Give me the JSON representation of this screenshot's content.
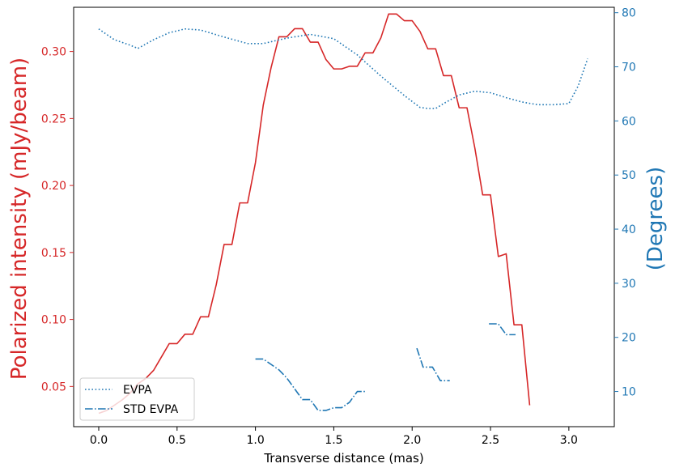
{
  "chart_data": {
    "type": "line",
    "xlabel": "Transverse distance (mas)",
    "ylabel_left": "Polarized intensity (mJy/beam)",
    "ylabel_right": "(Degrees)",
    "xlim": [
      -0.16,
      3.29
    ],
    "ylim_left": [
      0.02,
      0.333
    ],
    "ylim_right": [
      3.5,
      81
    ],
    "x_ticks": [
      0.0,
      0.5,
      1.0,
      1.5,
      2.0,
      2.5,
      3.0
    ],
    "x_tick_labels": [
      "0.0",
      "0.5",
      "1.0",
      "1.5",
      "2.0",
      "2.5",
      "3.0"
    ],
    "y_left_ticks": [
      0.05,
      0.1,
      0.15,
      0.2,
      0.25,
      0.3
    ],
    "y_left_tick_labels": [
      "0.05",
      "0.10",
      "0.15",
      "0.20",
      "0.25",
      "0.30"
    ],
    "y_right_ticks": [
      10,
      20,
      30,
      40,
      50,
      60,
      70,
      80
    ],
    "y_right_tick_labels": [
      "10",
      "20",
      "30",
      "40",
      "50",
      "60",
      "70",
      "80"
    ],
    "grid": false,
    "legend_position": "lower-left",
    "colors": {
      "pi": "#d62728",
      "evpa": "#1f77b4",
      "left_axis": "#d62728",
      "right_axis": "#1f77b4"
    },
    "series": [
      {
        "axis": "left",
        "style": "solid",
        "color": "#d62728",
        "points": [
          [
            0.0,
            0.03
          ],
          [
            0.05,
            0.032
          ],
          [
            0.1,
            0.036
          ],
          [
            0.15,
            0.04
          ],
          [
            0.2,
            0.045
          ],
          [
            0.25,
            0.052
          ],
          [
            0.3,
            0.056
          ],
          [
            0.35,
            0.062
          ],
          [
            0.4,
            0.072
          ],
          [
            0.45,
            0.082
          ],
          [
            0.5,
            0.082
          ],
          [
            0.55,
            0.089
          ],
          [
            0.6,
            0.089
          ],
          [
            0.65,
            0.102
          ],
          [
            0.7,
            0.102
          ],
          [
            0.75,
            0.126
          ],
          [
            0.8,
            0.156
          ],
          [
            0.85,
            0.156
          ],
          [
            0.9,
            0.187
          ],
          [
            0.95,
            0.187
          ],
          [
            1.0,
            0.217
          ],
          [
            1.05,
            0.26
          ],
          [
            1.1,
            0.288
          ],
          [
            1.15,
            0.311
          ],
          [
            1.2,
            0.311
          ],
          [
            1.25,
            0.317
          ],
          [
            1.3,
            0.317
          ],
          [
            1.35,
            0.307
          ],
          [
            1.4,
            0.307
          ],
          [
            1.45,
            0.294
          ],
          [
            1.5,
            0.287
          ],
          [
            1.55,
            0.287
          ],
          [
            1.6,
            0.289
          ],
          [
            1.65,
            0.289
          ],
          [
            1.7,
            0.299
          ],
          [
            1.75,
            0.299
          ],
          [
            1.8,
            0.31
          ],
          [
            1.85,
            0.328
          ],
          [
            1.9,
            0.328
          ],
          [
            1.95,
            0.323
          ],
          [
            2.0,
            0.323
          ],
          [
            2.05,
            0.315
          ],
          [
            2.1,
            0.302
          ],
          [
            2.15,
            0.302
          ],
          [
            2.2,
            0.282
          ],
          [
            2.25,
            0.282
          ],
          [
            2.3,
            0.258
          ],
          [
            2.35,
            0.258
          ],
          [
            2.4,
            0.228
          ],
          [
            2.45,
            0.193
          ],
          [
            2.5,
            0.193
          ],
          [
            2.55,
            0.147
          ],
          [
            2.6,
            0.149
          ],
          [
            2.65,
            0.096
          ],
          [
            2.7,
            0.096
          ],
          [
            2.75,
            0.036
          ]
        ]
      },
      {
        "name": "EVPA",
        "axis": "right",
        "style": "dotted",
        "color": "#1f77b4",
        "points": [
          [
            0.0,
            77.0
          ],
          [
            0.1,
            75.0
          ],
          [
            0.2,
            74.0
          ],
          [
            0.25,
            73.4
          ],
          [
            0.35,
            75.0
          ],
          [
            0.45,
            76.3
          ],
          [
            0.55,
            77.0
          ],
          [
            0.65,
            76.8
          ],
          [
            0.8,
            75.5
          ],
          [
            0.95,
            74.3
          ],
          [
            1.05,
            74.3
          ],
          [
            1.2,
            75.3
          ],
          [
            1.35,
            76.0
          ],
          [
            1.5,
            75.2
          ],
          [
            1.65,
            72.2
          ],
          [
            1.8,
            68.3
          ],
          [
            1.95,
            64.7
          ],
          [
            2.05,
            62.5
          ],
          [
            2.1,
            62.3
          ],
          [
            2.15,
            62.3
          ],
          [
            2.2,
            63.2
          ],
          [
            2.3,
            64.8
          ],
          [
            2.4,
            65.5
          ],
          [
            2.5,
            65.2
          ],
          [
            2.6,
            64.3
          ],
          [
            2.7,
            63.5
          ],
          [
            2.8,
            63.0
          ],
          [
            2.9,
            63.0
          ],
          [
            3.0,
            63.2
          ],
          [
            3.06,
            66.5
          ],
          [
            3.12,
            71.5
          ]
        ]
      },
      {
        "name": "STD EVPA",
        "axis": "right",
        "style": "dashdot",
        "color": "#1f77b4",
        "segments": [
          [
            [
              1.0,
              16.0
            ],
            [
              1.05,
              16.0
            ],
            [
              1.1,
              15.0
            ],
            [
              1.15,
              14.0
            ],
            [
              1.2,
              12.5
            ],
            [
              1.25,
              10.5
            ],
            [
              1.3,
              8.5
            ],
            [
              1.35,
              8.5
            ],
            [
              1.4,
              6.5
            ],
            [
              1.45,
              6.5
            ],
            [
              1.5,
              7.0
            ],
            [
              1.55,
              7.0
            ],
            [
              1.6,
              8.0
            ],
            [
              1.65,
              10.0
            ],
            [
              1.7,
              10.0
            ]
          ],
          [
            [
              2.03,
              18.0
            ],
            [
              2.07,
              14.5
            ],
            [
              2.13,
              14.5
            ],
            [
              2.18,
              12.0
            ],
            [
              2.24,
              12.0
            ]
          ],
          [
            [
              2.49,
              22.5
            ],
            [
              2.55,
              22.5
            ],
            [
              2.6,
              20.5
            ],
            [
              2.66,
              20.5
            ]
          ]
        ]
      }
    ]
  }
}
